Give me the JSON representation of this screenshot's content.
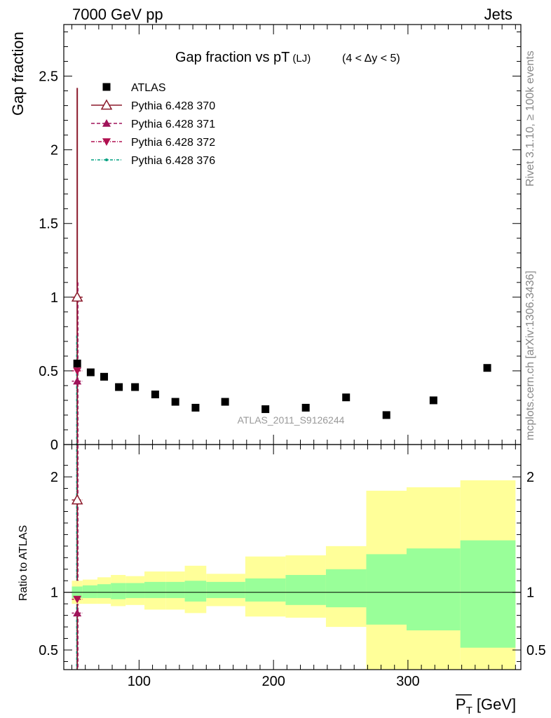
{
  "header": {
    "left": "7000 GeV pp",
    "right": "Jets"
  },
  "side_labels": {
    "rivet": "Rivet 3.1.10, ≥ 100k events",
    "mcplots": "mcplots.cern.ch [arXiv:1306.3436]"
  },
  "chart_data": [
    {
      "type": "scatter",
      "title": "Gap fraction vs pT",
      "title_sub": "(LJ)",
      "title_range": "(4 < Δy < 5)",
      "ylabel": "Gap fraction",
      "ylim": [
        0,
        2.85
      ],
      "xlim": [
        44,
        384
      ],
      "yticks": [
        0,
        0.5,
        1,
        1.5,
        2,
        2.5
      ],
      "ytick_labels": [
        "0",
        "0.5",
        "1",
        "1.5",
        "2",
        "2.5"
      ],
      "watermark": "ATLAS_2011_S9126244",
      "legend_position": "top-left",
      "series": [
        {
          "name": "ATLAS",
          "marker": "square",
          "color": "#000000",
          "x": [
            54,
            64,
            74,
            85,
            97,
            112,
            127,
            142,
            164,
            194,
            224,
            254,
            284,
            319,
            359
          ],
          "y": [
            0.55,
            0.49,
            0.46,
            0.39,
            0.39,
            0.34,
            0.29,
            0.25,
            0.29,
            0.24,
            0.25,
            0.32,
            0.2,
            0.3,
            0.52
          ]
        },
        {
          "name": "Pythia 6.428 370",
          "marker": "triangle-up-open",
          "color": "#8b1a2b",
          "line": "solid",
          "x": [
            54
          ],
          "y": [
            1.0
          ],
          "yerr_lo": [
            1.0
          ],
          "yerr_hi": [
            1.42
          ]
        },
        {
          "name": "Pythia 6.428 371",
          "marker": "triangle-up",
          "color": "#a0145a",
          "line": "dashed",
          "x": [
            54
          ],
          "y": [
            0.43
          ]
        },
        {
          "name": "Pythia 6.428 372",
          "marker": "triangle-down",
          "color": "#b01050",
          "line": "dashdot",
          "x": [
            54
          ],
          "y": [
            0.5
          ]
        },
        {
          "name": "Pythia 6.428 376",
          "marker": "dot",
          "color": "#00a080",
          "line": "dashdot",
          "x": [],
          "y": []
        }
      ]
    },
    {
      "type": "area",
      "ylabel": "Ratio to ATLAS",
      "xlabel": "P_T [GeV]",
      "xlabel_main": "P",
      "xlabel_sub": "T",
      "xlabel_unit": "[GeV]",
      "ylim": [
        0.33,
        2.28
      ],
      "xlim": [
        44,
        384
      ],
      "xticks": [
        100,
        200,
        300
      ],
      "xtick_labels": [
        "100",
        "200",
        "300"
      ],
      "yticks": [
        0.5,
        1,
        2
      ],
      "ytick_labels": [
        "0.5",
        "1",
        "2"
      ],
      "band_edges": [
        50,
        58,
        69,
        79,
        90,
        104,
        120,
        134,
        150,
        179,
        209,
        239,
        269,
        299,
        339,
        380
      ],
      "band_1sigma_lo": [
        0.95,
        0.95,
        0.95,
        0.94,
        0.95,
        0.95,
        0.95,
        0.92,
        0.95,
        0.92,
        0.89,
        0.87,
        0.72,
        0.67,
        0.52
      ],
      "band_1sigma_hi": [
        1.05,
        1.06,
        1.07,
        1.08,
        1.08,
        1.09,
        1.09,
        1.1,
        1.09,
        1.12,
        1.15,
        1.2,
        1.33,
        1.38,
        1.45
      ],
      "band_2sigma_lo": [
        0.9,
        0.9,
        0.9,
        0.88,
        0.89,
        0.85,
        0.85,
        0.82,
        0.88,
        0.79,
        0.78,
        0.7,
        0.33,
        0.33,
        0.33
      ],
      "band_2sigma_hi": [
        1.1,
        1.11,
        1.13,
        1.15,
        1.14,
        1.18,
        1.18,
        1.23,
        1.16,
        1.31,
        1.32,
        1.4,
        1.88,
        1.91,
        1.97
      ],
      "band_colors": {
        "inner": "#99ff99",
        "outer": "#ffff99"
      },
      "series": [
        {
          "name": "Pythia 6.428 370",
          "x": [
            54
          ],
          "y": [
            1.8
          ]
        },
        {
          "name": "Pythia 6.428 371",
          "x": [
            54
          ],
          "y": [
            0.82
          ]
        },
        {
          "name": "Pythia 6.428 372",
          "x": [
            54
          ],
          "y": [
            0.94
          ]
        }
      ]
    }
  ]
}
